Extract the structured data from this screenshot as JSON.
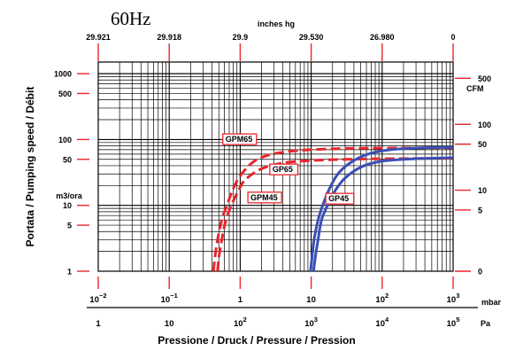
{
  "title": "60Hz",
  "top_axis": {
    "label": "inches hg",
    "ticks": [
      {
        "label": "29.921",
        "mbar": 0.01
      },
      {
        "label": "29.918",
        "mbar": 0.1
      },
      {
        "label": "29.9",
        "mbar": 1
      },
      {
        "label": "29.530",
        "mbar": 10
      },
      {
        "label": "26.980",
        "mbar": 100
      },
      {
        "label": "0",
        "mbar": 1000
      }
    ]
  },
  "left_axis": {
    "label": "Portata / Pumping speed / Débit",
    "unit": "m3/ora",
    "ticks": [
      1000,
      500,
      100,
      50,
      10,
      5,
      1
    ]
  },
  "right_axis": {
    "unit": "CFM",
    "ticks": [
      {
        "label": "500",
        "m3h": 850
      },
      {
        "label": "100",
        "m3h": 170
      },
      {
        "label": "50",
        "m3h": 85
      },
      {
        "label": "10",
        "m3h": 17
      },
      {
        "label": "5",
        "m3h": 8.5
      },
      {
        "label": "0",
        "m3h": 1
      }
    ]
  },
  "bottom_axis": {
    "label": "Pressione / Druck / Pressure / Pression",
    "mbar_unit": "mbar",
    "pa_unit": "Pa",
    "mbar_ticks": [
      {
        "base": "10",
        "exp": "−2",
        "mbar": 0.01
      },
      {
        "base": "10",
        "exp": "−1",
        "mbar": 0.1
      },
      {
        "base": "1",
        "exp": "",
        "mbar": 1
      },
      {
        "base": "10",
        "exp": "",
        "mbar": 10
      },
      {
        "base": "10",
        "exp": "2",
        "mbar": 100
      },
      {
        "base": "10",
        "exp": "3",
        "mbar": 1000
      }
    ],
    "pa_ticks": [
      {
        "base": "1",
        "exp": "",
        "mbar": 0.01
      },
      {
        "base": "10",
        "exp": "",
        "mbar": 0.1
      },
      {
        "base": "10",
        "exp": "2",
        "mbar": 1
      },
      {
        "base": "10",
        "exp": "3",
        "mbar": 10
      },
      {
        "base": "10",
        "exp": "4",
        "mbar": 100
      },
      {
        "base": "10",
        "exp": "5",
        "mbar": 1000
      }
    ]
  },
  "chart_data": {
    "type": "line",
    "x_scale": "log",
    "y_scale": "log",
    "xlim": [
      0.01,
      1000
    ],
    "ylim": [
      1,
      1500
    ],
    "xlabel": "Pressione / Druck / Pressure / Pression",
    "ylabel": "Portata / Pumping speed / Débit",
    "grid": true,
    "series": [
      {
        "name": "GPM65",
        "color": "#e8262b",
        "dash": true,
        "points": [
          [
            0.42,
            1
          ],
          [
            0.44,
            1.6
          ],
          [
            0.48,
            3
          ],
          [
            0.55,
            6
          ],
          [
            0.65,
            10
          ],
          [
            0.8,
            18
          ],
          [
            1.0,
            28
          ],
          [
            1.5,
            45
          ],
          [
            2.5,
            58
          ],
          [
            5,
            66
          ],
          [
            10,
            70
          ],
          [
            30,
            73
          ],
          [
            100,
            74
          ],
          [
            1000,
            75
          ]
        ]
      },
      {
        "name": "GPM45",
        "color": "#e8262b",
        "dash": true,
        "points": [
          [
            0.48,
            1
          ],
          [
            0.5,
            1.6
          ],
          [
            0.55,
            3
          ],
          [
            0.63,
            6
          ],
          [
            0.75,
            10
          ],
          [
            0.95,
            17
          ],
          [
            1.2,
            25
          ],
          [
            2,
            36
          ],
          [
            4,
            44
          ],
          [
            10,
            48
          ],
          [
            30,
            50
          ],
          [
            100,
            51
          ],
          [
            1000,
            52
          ]
        ]
      },
      {
        "name": "GP65",
        "color": "#3a4fb4",
        "dash": false,
        "points": [
          [
            9.8,
            1
          ],
          [
            10.2,
            1.5
          ],
          [
            11,
            3
          ],
          [
            12.5,
            6
          ],
          [
            15,
            11
          ],
          [
            19,
            20
          ],
          [
            25,
            32
          ],
          [
            40,
            48
          ],
          [
            70,
            62
          ],
          [
            150,
            71
          ],
          [
            400,
            75
          ],
          [
            1000,
            76
          ]
        ]
      },
      {
        "name": "GP45",
        "color": "#3a4fb4",
        "dash": false,
        "points": [
          [
            10.8,
            1
          ],
          [
            11.3,
            1.5
          ],
          [
            12.5,
            3
          ],
          [
            14,
            6
          ],
          [
            17,
            10
          ],
          [
            22,
            17
          ],
          [
            30,
            26
          ],
          [
            50,
            38
          ],
          [
            90,
            46
          ],
          [
            200,
            50
          ],
          [
            500,
            52
          ],
          [
            1000,
            53
          ]
        ]
      }
    ],
    "labels": [
      {
        "text": "GPM65",
        "series": "GPM65",
        "x": 0.62,
        "y": 92
      },
      {
        "text": "GPM45",
        "series": "GPM45",
        "x": 1.4,
        "y": 12
      },
      {
        "text": "GP65",
        "series": "GP65",
        "x": 2.85,
        "y": 32
      },
      {
        "text": "GP45",
        "series": "GP45",
        "x": 17.5,
        "y": 11.5
      }
    ]
  }
}
